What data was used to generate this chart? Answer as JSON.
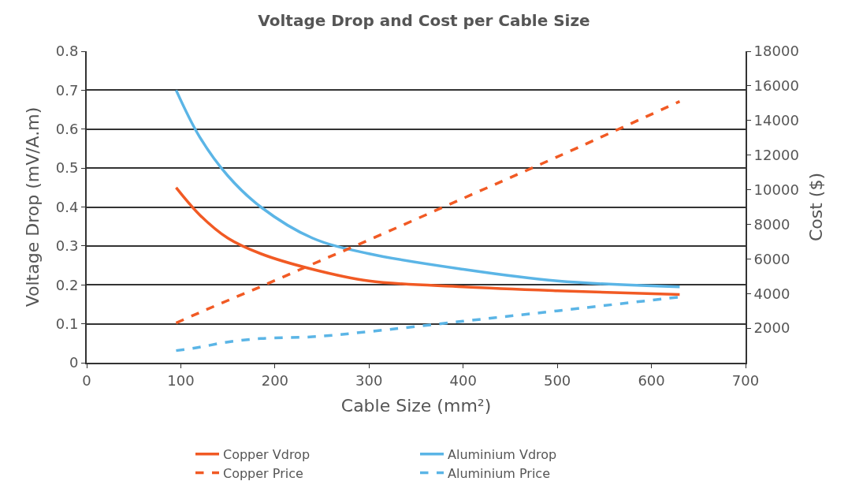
{
  "chart_data": {
    "type": "line",
    "title": "Voltage Drop and Cost per Cable Size",
    "xlabel": "Cable Size (mm²)",
    "ylabel": "Voltage Drop (mV/A.m)",
    "y2label": "Cost ($)",
    "x": [
      95,
      120,
      150,
      185,
      240,
      300,
      400,
      500,
      630
    ],
    "series": [
      {
        "name": "Copper Vdrop",
        "color": "#f15a24",
        "values": [
          0.45,
          0.38,
          0.32,
          0.28,
          0.24,
          0.21,
          0.195,
          0.185,
          0.175
        ],
        "line_style": "solid"
      },
      {
        "name": "Aluminium Vdrop",
        "color": "#5bb5e6",
        "values": [
          0.7,
          0.58,
          0.48,
          0.4,
          0.32,
          0.28,
          0.24,
          0.21,
          0.195
        ],
        "line_style": "solid"
      },
      {
        "name": "Copper Price",
        "color": "#f15a24",
        "values": [
          2300,
          2900,
          3600,
          4400,
          5700,
          7100,
          9500,
          11900,
          15100
        ],
        "line_style": "dashed",
        "axis": "y2"
      },
      {
        "name": "Aluminium Price",
        "color": "#5bb5e6",
        "values": [
          700,
          900,
          1200,
          1400,
          1500,
          1800,
          2400,
          3000,
          3800
        ],
        "line_style": "dashed",
        "axis": "y2"
      }
    ],
    "xlim": [
      0,
      700
    ],
    "xticks": [
      0,
      100,
      200,
      300,
      400,
      500,
      600,
      700
    ],
    "ylim": [
      0,
      0.8
    ],
    "yticks": [
      0,
      0.1,
      0.2,
      0.3,
      0.4,
      0.5,
      0.6,
      0.7,
      0.8
    ],
    "y2lim": [
      0,
      18000
    ],
    "y2ticks": [
      2000,
      4000,
      6000,
      8000,
      10000,
      12000,
      14000,
      16000,
      18000
    ],
    "grid": "y",
    "legend": "bottom",
    "marker": "none"
  }
}
